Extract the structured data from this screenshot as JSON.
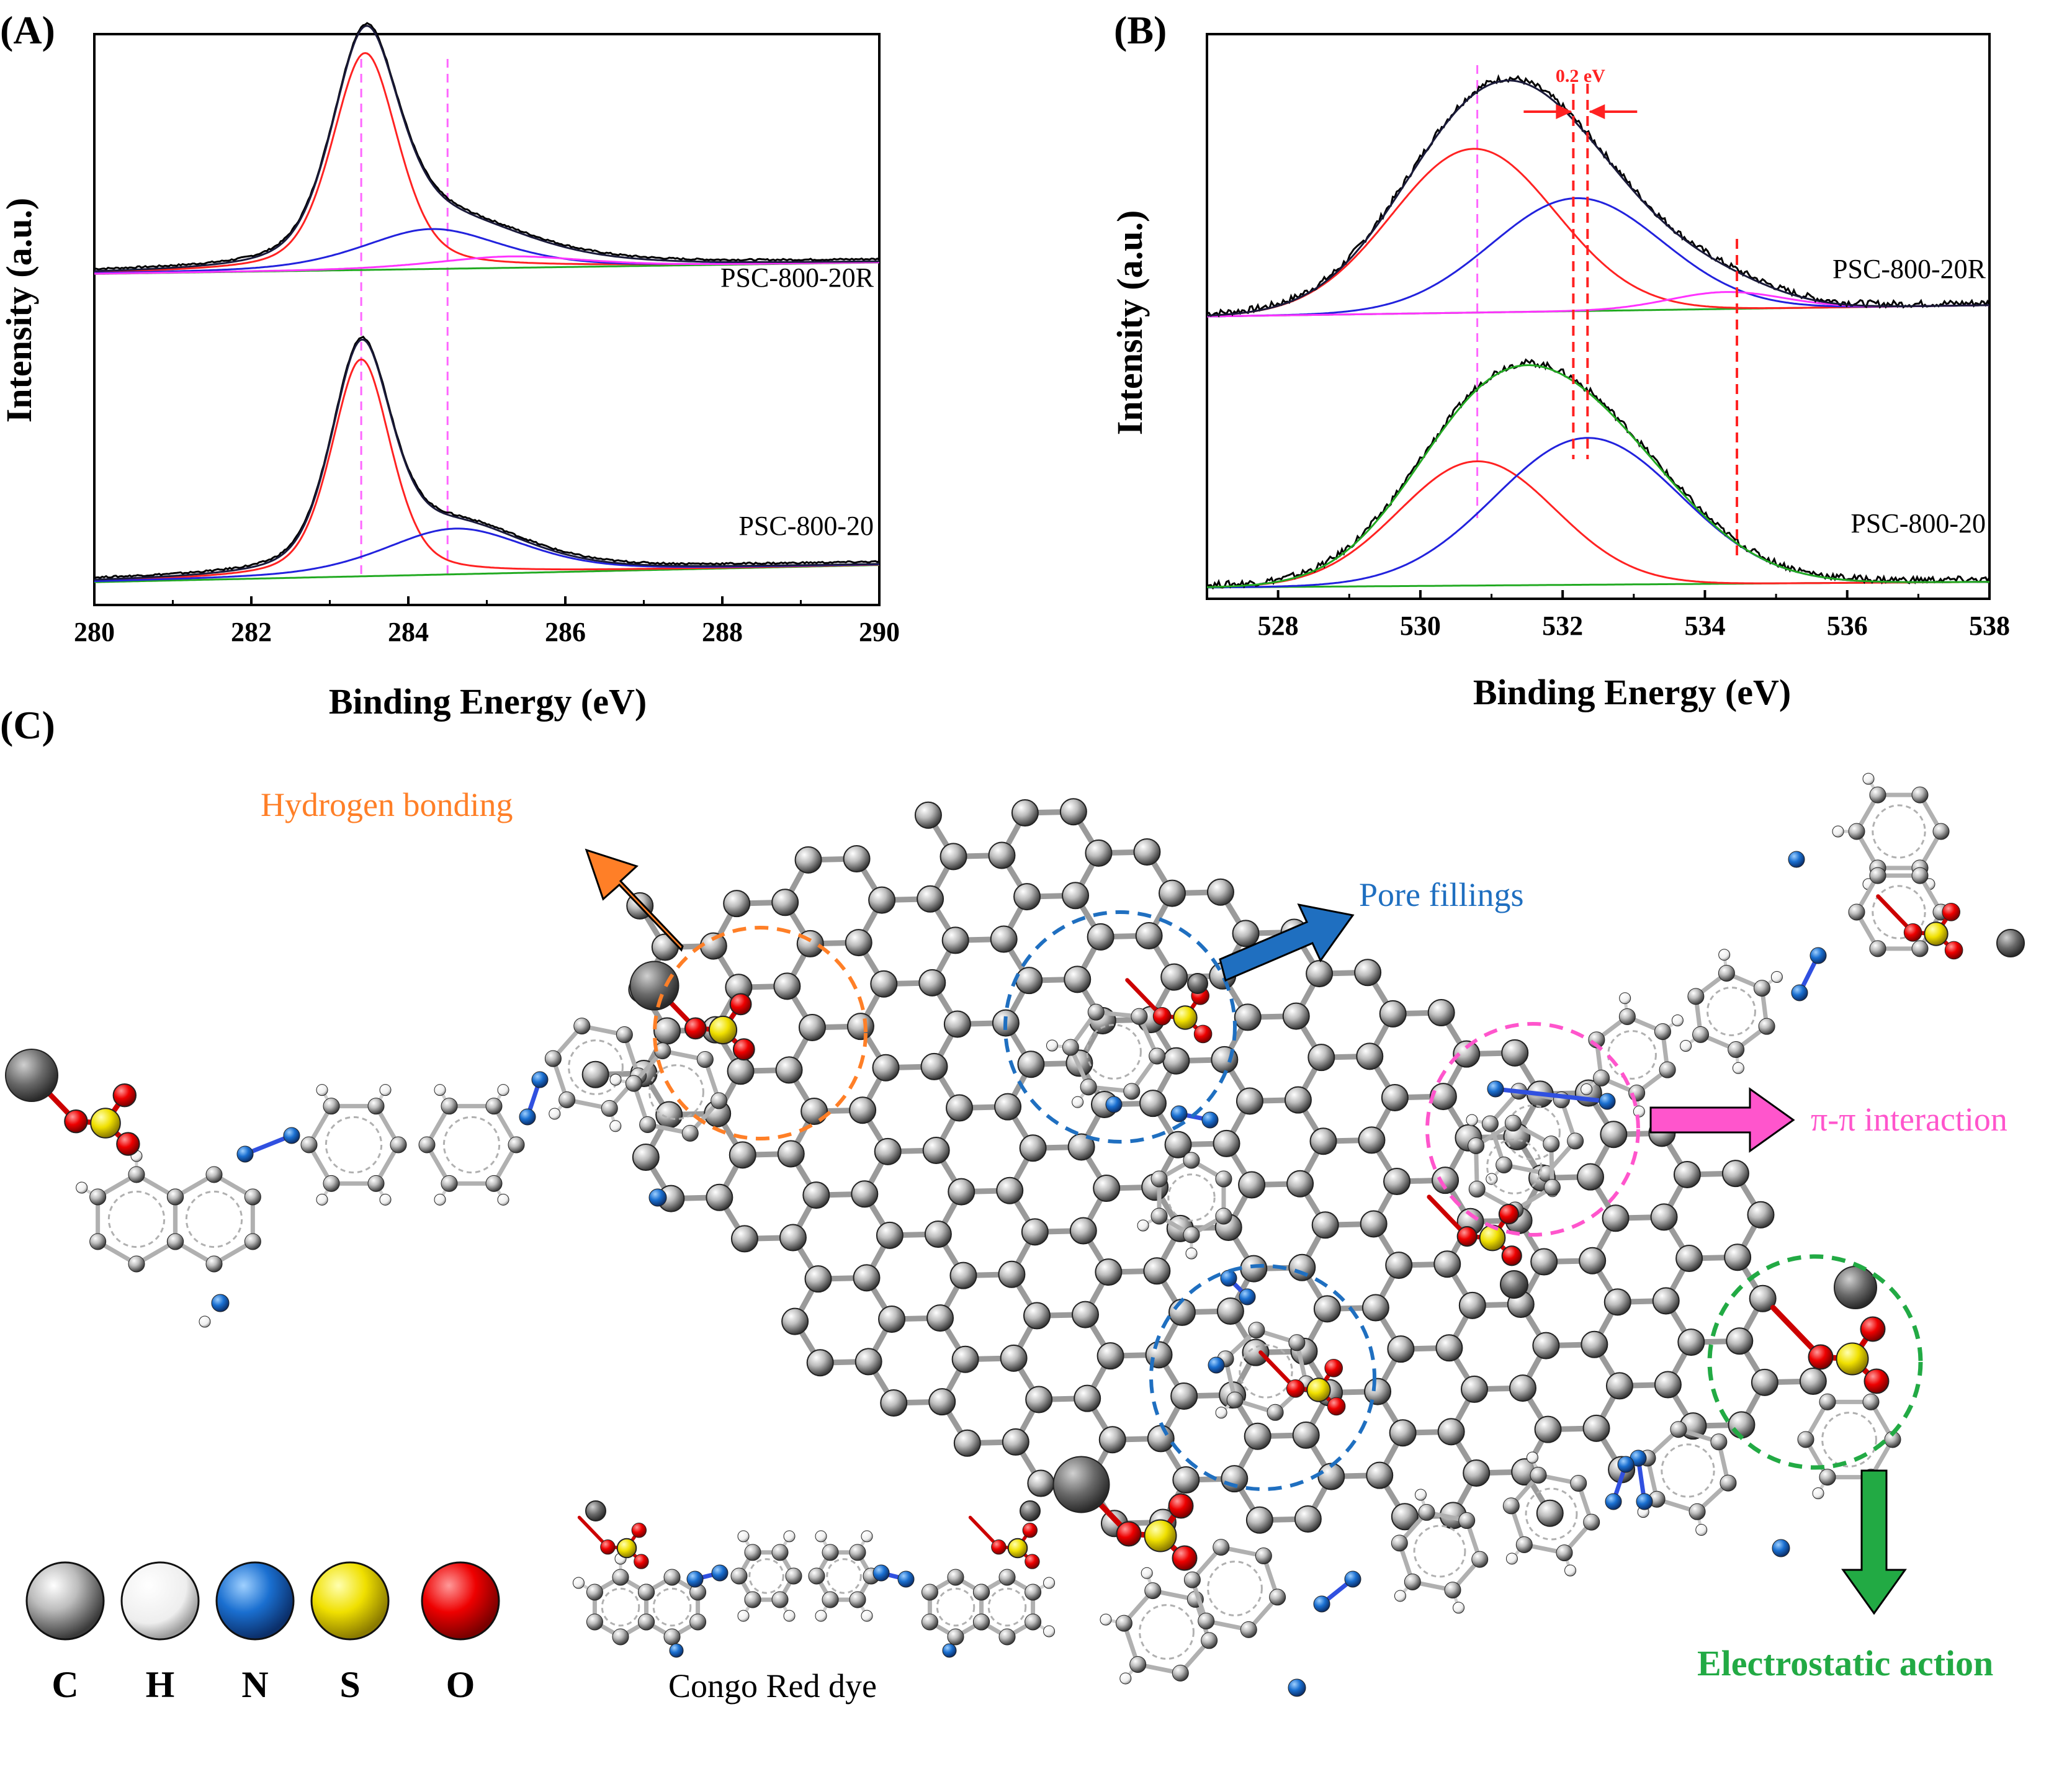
{
  "colors": {
    "envelope": "#1a1a3a",
    "raw": "#000000",
    "peak1": "#ff2222",
    "peak2": "#2222dd",
    "peak3": "#ff33ff",
    "background": "#22aa22",
    "guide_magenta": "#ff66ff",
    "guide_red": "#ff2222",
    "orange": "#ff7f27",
    "blue": "#1f6fc0",
    "pink": "#ff55cc",
    "green": "#22aa44",
    "atom_C": "#8a8a8a",
    "atom_H": "#e8e8e8",
    "atom_N": "#1a6fd0",
    "atom_S": "#e8d400",
    "atom_O": "#ee0000",
    "bond": "#9a9a9a"
  },
  "chart_data": [
    {
      "panel": "(A)",
      "type": "line",
      "title": "",
      "xlabel": "Binding Energy (eV)",
      "ylabel": "Intensity (a.u.)",
      "xlim": [
        280,
        290
      ],
      "ylim": [
        0,
        1
      ],
      "xticks": [
        280,
        282,
        284,
        286,
        288,
        290
      ],
      "xtick_labels": [
        "280",
        "282",
        "284",
        "286",
        "288",
        "290"
      ],
      "guide_lines": [
        283.4,
        284.5
      ],
      "grid": false,
      "stacked": [
        {
          "label": "PSC-800-20R",
          "offset": 0.58,
          "peaks": [
            {
              "name": "peak-1",
              "center": 283.45,
              "height": 0.38,
              "sigma": 0.42,
              "gamma": 0.5
            },
            {
              "name": "peak-2",
              "center": 284.3,
              "height": 0.07,
              "sigma": 0.9,
              "gamma": 1.0
            },
            {
              "name": "peak-3",
              "center": 285.3,
              "height": 0.02,
              "sigma": 1.0,
              "gamma": 1.0
            }
          ],
          "background_rise": 0.02
        },
        {
          "label": "PSC-800-20",
          "offset": 0.04,
          "peaks": [
            {
              "name": "peak-1",
              "center": 283.4,
              "height": 0.38,
              "sigma": 0.38,
              "gamma": 0.45
            },
            {
              "name": "peak-2",
              "center": 284.6,
              "height": 0.08,
              "sigma": 0.9,
              "gamma": 1.1
            }
          ],
          "background_rise": 0.03
        }
      ]
    },
    {
      "panel": "(B)",
      "type": "line",
      "title": "",
      "xlabel": "Binding Energy (eV)",
      "ylabel": "Intensity (a.u.)",
      "xlim": [
        527,
        538
      ],
      "ylim": [
        0,
        1
      ],
      "xticks": [
        528,
        530,
        532,
        534,
        536,
        538
      ],
      "xtick_labels": [
        "528",
        "530",
        "532",
        "534",
        "536",
        "538"
      ],
      "guide_lines_magenta": [
        530.8
      ],
      "guide_lines_red": [
        532.15,
        532.35,
        534.45
      ],
      "annotation": "0.2 eV",
      "grid": false,
      "stacked": [
        {
          "label": "PSC-800-20R",
          "offset": 0.5,
          "peaks": [
            {
              "name": "peak-1",
              "center": 530.75,
              "height": 0.29,
              "sigma": 1.15
            },
            {
              "name": "peak-2",
              "center": 532.2,
              "height": 0.2,
              "sigma": 1.2
            },
            {
              "name": "peak-3",
              "center": 534.3,
              "height": 0.03,
              "sigma": 0.8
            }
          ],
          "background_rise": 0.02
        },
        {
          "label": "PSC-800-20",
          "offset": 0.02,
          "peaks": [
            {
              "name": "peak-1",
              "center": 530.8,
              "height": 0.22,
              "sigma": 1.1
            },
            {
              "name": "peak-2",
              "center": 532.35,
              "height": 0.26,
              "sigma": 1.3
            }
          ],
          "background_rise": 0.01
        }
      ]
    }
  ],
  "panel_c": {
    "label": "(C)",
    "mechanisms": {
      "hydrogen_bonding": "Hydrogen bonding",
      "pore_fillings": "Pore fillings",
      "pi_pi": "π-π interaction",
      "electrostatic": "Electrostatic action"
    },
    "legend": {
      "atoms": [
        {
          "symbol": "C",
          "color": "#8a8a8a"
        },
        {
          "symbol": "H",
          "color": "#f2f2f2"
        },
        {
          "symbol": "N",
          "color": "#1a6fd0"
        },
        {
          "symbol": "S",
          "color": "#f0e000"
        },
        {
          "symbol": "O",
          "color": "#ee0000"
        }
      ]
    },
    "dye_label": "Congo Red dye"
  }
}
